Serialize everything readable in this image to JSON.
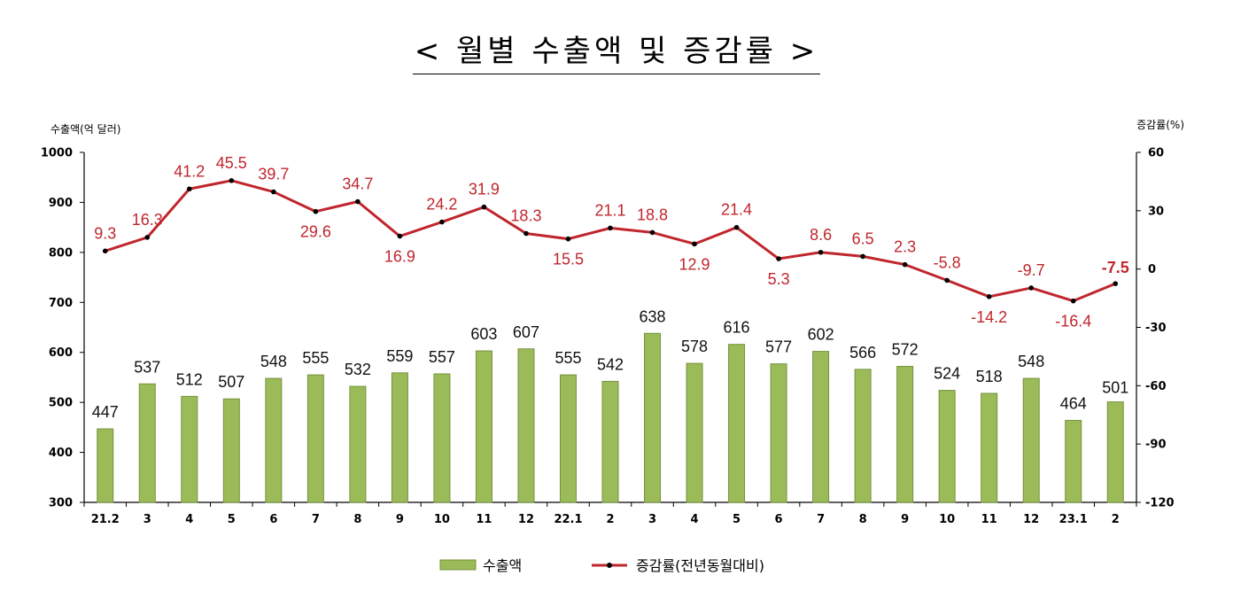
{
  "title": "< 월별 수출액 및 증감률 >",
  "chart_data": {
    "type": "bar+line",
    "y_left_label": "수출액(억 달러)",
    "y_right_label": "증감률(%)",
    "y_left_lim": [
      300,
      1000
    ],
    "y_left_ticks": [
      "300",
      "400",
      "500",
      "600",
      "700",
      "800",
      "900",
      "1000"
    ],
    "y_right_lim": [
      -120,
      60
    ],
    "y_right_ticks": [
      "-120",
      "-90",
      "-60",
      "-30",
      "0",
      "30",
      "60"
    ],
    "categories": [
      "21.2",
      "3",
      "4",
      "5",
      "6",
      "7",
      "8",
      "9",
      "10",
      "11",
      "12",
      "22.1",
      "2",
      "3",
      "4",
      "5",
      "6",
      "7",
      "8",
      "9",
      "10",
      "11",
      "12",
      "23.1",
      "2"
    ],
    "series": [
      {
        "name": "수출액",
        "type": "bar",
        "values": [
          447,
          537,
          512,
          507,
          548,
          555,
          532,
          559,
          557,
          603,
          607,
          555,
          542,
          638,
          578,
          616,
          577,
          602,
          566,
          572,
          524,
          518,
          548,
          464,
          501
        ],
        "labels": [
          "447",
          "537",
          "512",
          "507",
          "548",
          "555",
          "532",
          "559",
          "557",
          "603",
          "607",
          "555",
          "542",
          "638",
          "578",
          "616",
          "577",
          "602",
          "566",
          "572",
          "524",
          "518",
          "548",
          "464",
          "501"
        ]
      },
      {
        "name": "증감률(전년동월대비)",
        "type": "line",
        "values": [
          9.3,
          16.3,
          41.2,
          45.5,
          39.7,
          29.6,
          34.7,
          16.9,
          24.2,
          31.9,
          18.3,
          15.5,
          21.1,
          18.8,
          12.9,
          21.4,
          5.3,
          8.6,
          6.5,
          2.3,
          -5.8,
          -14.2,
          -9.7,
          -16.4,
          -7.5
        ],
        "labels": [
          "9.3",
          "16.3",
          "41.2",
          "45.5",
          "39.7",
          "29.6",
          "34.7",
          "16.9",
          "24.2",
          "31.9",
          "18.3",
          "15.5",
          "21.1",
          "18.8",
          "12.9",
          "21.4",
          "5.3",
          "8.6",
          "6.5",
          "2.3",
          "-5.8",
          "-14.2",
          "-9.7",
          "-16.4",
          "-7.5"
        ]
      }
    ],
    "legend": {
      "position": "bottom-center",
      "items": [
        "수출액",
        "증감률(전년동월대비)"
      ]
    },
    "grid": false,
    "colors": {
      "bar_fill": "#9bbb59",
      "bar_edge": "#76923c",
      "line": "#c0262d",
      "marker": "#000000",
      "last_bar_label": "#1f3864"
    }
  }
}
